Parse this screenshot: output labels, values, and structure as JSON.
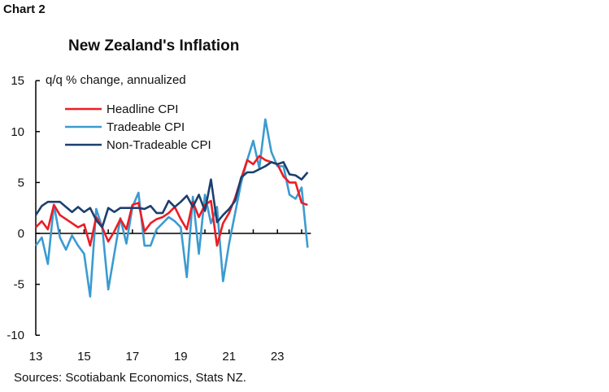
{
  "figure_label": "Chart 2",
  "chart_data": {
    "type": "line",
    "title": "New Zealand's Inflation",
    "ylabel": "q/q % change, annualized",
    "xlabel": "",
    "source": "Sources: Scotiabank Economics, Stats NZ.",
    "ylim": [
      -10,
      15
    ],
    "yticks": [
      "15",
      "10",
      "5",
      "0",
      "-5",
      "-10"
    ],
    "xticks": [
      "13",
      "15",
      "17",
      "19",
      "21",
      "23"
    ],
    "x_start": "2013Q1",
    "x_end": "2024Q2",
    "frequency": "quarterly",
    "grid": false,
    "legend_position": "top-left",
    "series": [
      {
        "name": "Headline CPI",
        "color": "#ed1c24",
        "values": [
          0.6,
          1.2,
          0.4,
          2.8,
          1.8,
          1.4,
          1.0,
          0.6,
          0.9,
          -1.2,
          1.6,
          0.6,
          -0.8,
          0.2,
          1.4,
          0.4,
          2.8,
          3.0,
          0.2,
          1.0,
          1.4,
          1.6,
          2.0,
          2.6,
          1.4,
          0.4,
          3.1,
          1.6,
          2.8,
          3.2,
          -1.2,
          1.0,
          2.0,
          3.5,
          5.4,
          7.2,
          6.8,
          7.6,
          7.2,
          7.0,
          6.8,
          5.6,
          5.0,
          5.0,
          3.0,
          2.8
        ]
      },
      {
        "name": "Tradeable CPI",
        "color": "#3b9bd0",
        "values": [
          -1.2,
          -0.4,
          -3.0,
          2.8,
          -0.4,
          -1.6,
          -0.2,
          -1.2,
          -2.0,
          -6.2,
          2.4,
          0.6,
          -5.5,
          -2.0,
          1.5,
          -1.0,
          2.6,
          4.0,
          -1.2,
          -1.2,
          0.4,
          1.0,
          1.6,
          1.2,
          0.6,
          -4.3,
          3.6,
          -2.0,
          3.8,
          1.0,
          2.6,
          -4.7,
          -1.0,
          2.0,
          5.0,
          7.2,
          9.1,
          6.4,
          11.2,
          8.0,
          6.6,
          6.6,
          3.8,
          3.4,
          4.5,
          -1.4
        ]
      },
      {
        "name": "Non-Tradeable CPI",
        "color": "#1c3f6e",
        "values": [
          1.8,
          2.7,
          3.1,
          3.1,
          3.1,
          2.6,
          2.1,
          2.6,
          2.1,
          2.5,
          1.3,
          0.6,
          2.5,
          2.1,
          2.5,
          2.5,
          2.5,
          2.5,
          2.4,
          2.7,
          2.0,
          2.0,
          3.2,
          2.6,
          3.1,
          3.7,
          2.6,
          3.8,
          2.2,
          5.3,
          1.1,
          1.8,
          2.4,
          3.2,
          5.5,
          6.0,
          6.0,
          6.3,
          6.6,
          7.0,
          6.8,
          7.0,
          5.8,
          5.7,
          5.3,
          6.0
        ]
      }
    ]
  }
}
